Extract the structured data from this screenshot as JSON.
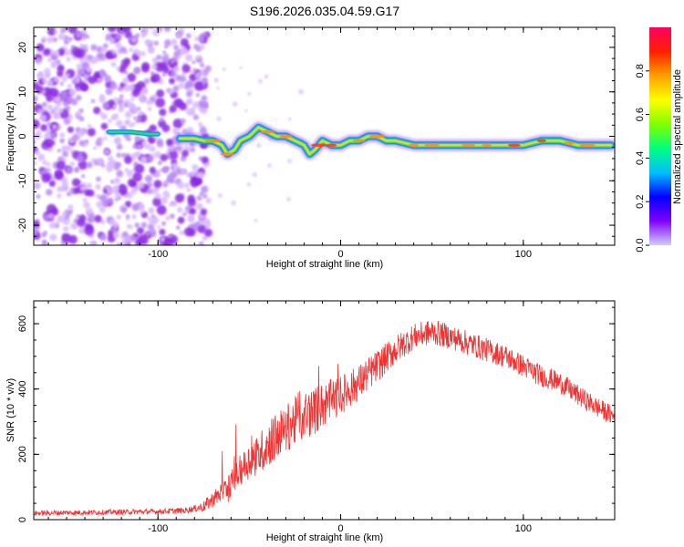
{
  "title": "S196.2026.035.04.59.G17",
  "colors": {
    "snr_line": "#ee3333",
    "ridge_core": "#e8d23a",
    "ridge_edge": "#1a8cff",
    "noise": "#8a2be2",
    "noise_light": "#d9b8ff"
  },
  "chart_data": [
    {
      "type": "heatmap",
      "name": "spectrogram",
      "xlabel": "Height of straight line (km)",
      "ylabel": "Frequency (Hz)",
      "xlim": [
        -168,
        150
      ],
      "ylim": [
        -24.5,
        24.5
      ],
      "xticks": [
        -100,
        0,
        100
      ],
      "xtick_labels": [
        "-100",
        "0",
        "100"
      ],
      "yticks": [
        20,
        10,
        0,
        -10,
        -20
      ],
      "ytick_labels": [
        "20",
        "10",
        "0",
        "-10",
        "-20"
      ],
      "colorbar": {
        "label": "Normalized spectral amplitude",
        "range": [
          0,
          1
        ],
        "ticks": [
          0.0,
          0.2,
          0.4,
          0.6,
          0.8
        ],
        "tick_labels": [
          "0.0",
          "0.2",
          "0.4",
          "0.6",
          "0.8"
        ],
        "stops": [
          "#d0d0ff",
          "#8000ff",
          "#0000ff",
          "#00c0ff",
          "#00ff80",
          "#80ff00",
          "#ffff00",
          "#ffa000",
          "#ff2000",
          "#ff0060"
        ]
      },
      "noise_region_x": [
        -168,
        -80
      ],
      "ridge": {
        "x": [
          -127,
          -115,
          -105,
          -95,
          -90,
          -85,
          -80,
          -75,
          -70,
          -65,
          -62,
          -58,
          -55,
          -50,
          -45,
          -40,
          -35,
          -30,
          -25,
          -20,
          -17,
          -14,
          -10,
          -5,
          0,
          5,
          10,
          15,
          20,
          25,
          30,
          40,
          50,
          60,
          70,
          80,
          90,
          100,
          110,
          120,
          130,
          140,
          148
        ],
        "y": [
          1,
          1,
          0.5,
          0.5,
          -0.5,
          -0.5,
          -0.5,
          -1,
          -1,
          -2,
          -4,
          -3,
          -1,
          0,
          2,
          1,
          0,
          0,
          -1,
          -2,
          -4,
          -3,
          -1,
          -2,
          -2,
          -1,
          -1,
          0,
          0,
          -1,
          -1,
          -2,
          -2,
          -2,
          -2,
          -2,
          -2,
          -2,
          -1,
          -1,
          -2,
          -2,
          -2
        ]
      }
    },
    {
      "type": "line",
      "name": "snr",
      "xlabel": "Height of straight line (km)",
      "ylabel": "SNR (10 * v/v)",
      "xlim": [
        -168,
        150
      ],
      "ylim": [
        0,
        670
      ],
      "xticks": [
        -100,
        0,
        100
      ],
      "xtick_labels": [
        "-100",
        "0",
        "100"
      ],
      "yticks": [
        0,
        200,
        400,
        600
      ],
      "ytick_labels": [
        "0",
        "200",
        "400",
        "600"
      ],
      "envelope": {
        "x": [
          -168,
          -140,
          -100,
          -85,
          -75,
          -68,
          -60,
          -55,
          -50,
          -45,
          -40,
          -35,
          -30,
          -25,
          -20,
          -15,
          -10,
          -5,
          0,
          10,
          20,
          30,
          40,
          50,
          60,
          70,
          80,
          90,
          100,
          110,
          120,
          130,
          140,
          150
        ],
        "y": [
          20,
          22,
          25,
          28,
          40,
          70,
          110,
          150,
          180,
          200,
          230,
          255,
          280,
          300,
          320,
          330,
          350,
          365,
          380,
          420,
          470,
          520,
          560,
          575,
          560,
          540,
          520,
          500,
          470,
          440,
          420,
          380,
          345,
          315
        ]
      },
      "noise_amplitude": {
        "x": [
          -168,
          -100,
          -80,
          -60,
          -40,
          -20,
          0,
          40,
          100,
          150
        ],
        "y": [
          8,
          8,
          10,
          40,
          70,
          80,
          60,
          40,
          35,
          30
        ]
      }
    }
  ]
}
